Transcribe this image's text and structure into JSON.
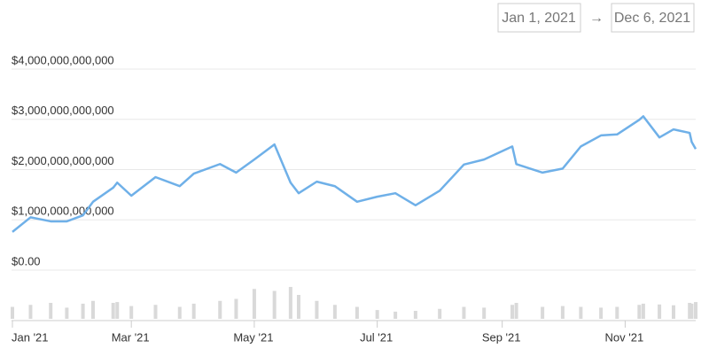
{
  "chart_data": {
    "type": "line",
    "range_start": "Jan 1, 2021",
    "range_separator": "→",
    "range_end": "Dec 6, 2021",
    "color": "#6fb0e8",
    "grid": true,
    "x": [
      0,
      9,
      19,
      27,
      35,
      40,
      50,
      52,
      59,
      71,
      83,
      90,
      103,
      111,
      120,
      130,
      138,
      142,
      151,
      160,
      171,
      181,
      190,
      200,
      212,
      224,
      234,
      248,
      250,
      263,
      273,
      282,
      292,
      300,
      311,
      313,
      321,
      328,
      336,
      337,
      339
    ],
    "values": [
      760000000000,
      1050000000000,
      970000000000,
      970000000000,
      1090000000000,
      1360000000000,
      1640000000000,
      1740000000000,
      1480000000000,
      1850000000000,
      1670000000000,
      1920000000000,
      2110000000000,
      1940000000000,
      2200000000000,
      2500000000000,
      1740000000000,
      1530000000000,
      1760000000000,
      1670000000000,
      1360000000000,
      1460000000000,
      1530000000000,
      1290000000000,
      1580000000000,
      2100000000000,
      2200000000000,
      2460000000000,
      2110000000000,
      1940000000000,
      2020000000000,
      2460000000000,
      2680000000000,
      2700000000000,
      2990000000000,
      3060000000000,
      2640000000000,
      2800000000000,
      2730000000000,
      2550000000000,
      2410000000000
    ],
    "volume": {
      "color": "#d9d9d9",
      "ylim": [
        0,
        100
      ],
      "values": [
        30,
        35,
        40,
        28,
        38,
        45,
        40,
        42,
        32,
        35,
        30,
        38,
        45,
        50,
        75,
        70,
        80,
        60,
        45,
        35,
        30,
        22,
        18,
        20,
        25,
        30,
        28,
        35,
        40,
        30,
        32,
        30,
        28,
        30,
        35,
        38,
        36,
        34,
        40,
        38,
        42
      ]
    },
    "xlim": [
      0,
      339
    ],
    "xticks": [
      {
        "value": 0,
        "label": "Jan '21"
      },
      {
        "value": 59,
        "label": "Mar '21"
      },
      {
        "value": 120,
        "label": "May '21"
      },
      {
        "value": 181,
        "label": "Jul '21"
      },
      {
        "value": 243,
        "label": "Sep '21"
      },
      {
        "value": 304,
        "label": "Nov '21"
      }
    ],
    "ylim": [
      0,
      4000000000000
    ],
    "yticks": [
      {
        "value": 0,
        "label": "$0.00"
      },
      {
        "value": 1000000000000,
        "label": "$1,000,000,000,000"
      },
      {
        "value": 2000000000000,
        "label": "$2,000,000,000,000"
      },
      {
        "value": 3000000000000,
        "label": "$3,000,000,000,000"
      },
      {
        "value": 4000000000000,
        "label": "$4,000,000,000,000"
      }
    ]
  }
}
